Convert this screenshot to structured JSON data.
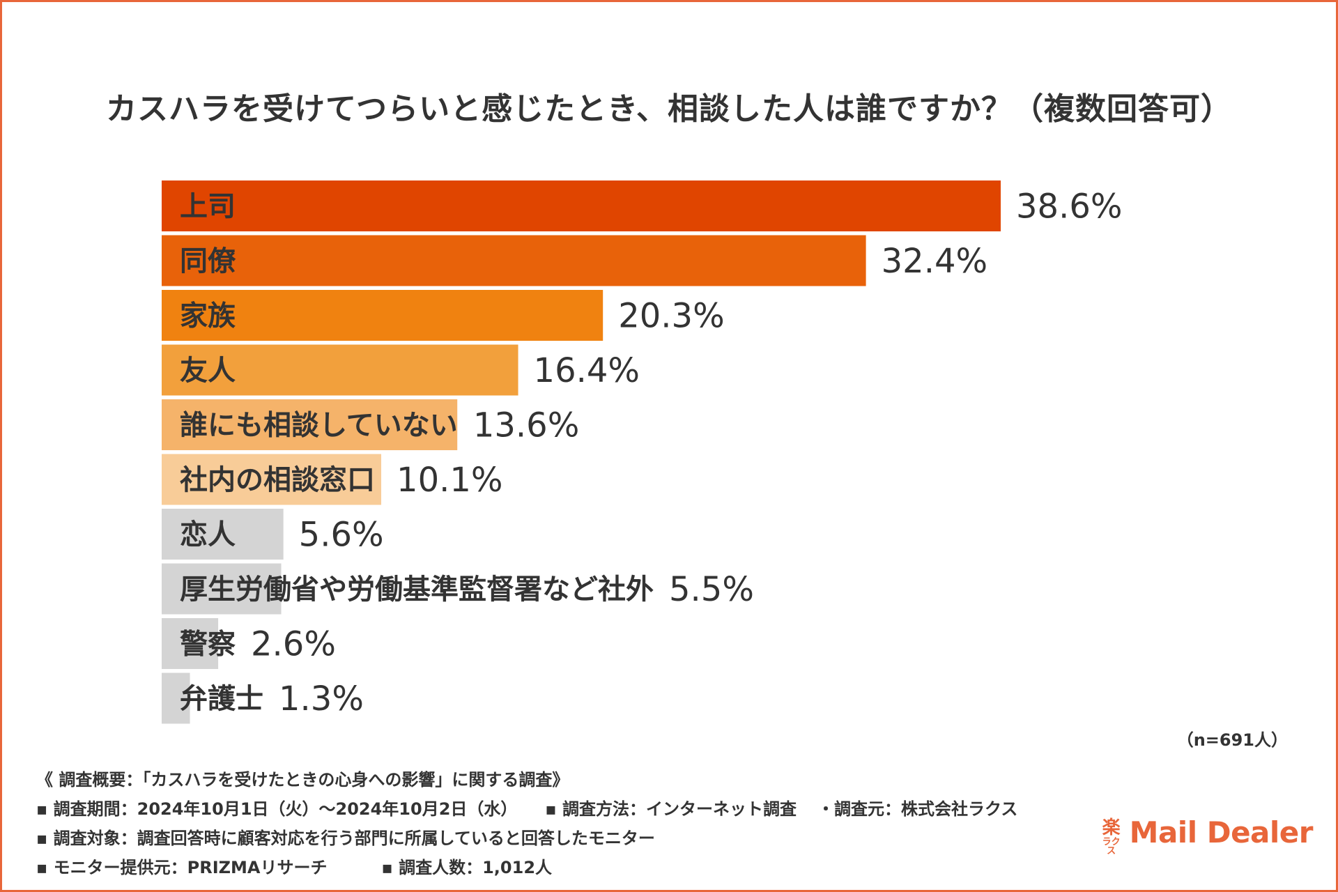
{
  "title": "カスハラを受けてつらいと感じたとき、相談した人は誰ですか？（複数回答可）",
  "sample_size": "（n=691人）",
  "notes": {
    "heading": "《 調査概要：「カスハラを受けたときの心身への影響」に関する調査》",
    "period": "▪ 調査期間：2024年10月1日（火）～2024年10月2日（水）",
    "method": "▪ 調査方法：インターネット調査",
    "source": "・調査元：株式会社ラクス",
    "target": "▪ 調査対象：調査回答時に顧客対応を行う部門に所属していると回答したモニター",
    "provider": "▪ モニター提供元：PRIZMAリサーチ",
    "respondents": "▪ 調査人数：1,012人"
  },
  "logo": {
    "mark_top": "楽",
    "mark_bottom": "ラクス",
    "text": "Mail Dealer"
  },
  "chart_data": {
    "type": "bar",
    "orientation": "horizontal",
    "categories": [
      "上司",
      "同僚",
      "家族",
      "友人",
      "誰にも相談していない",
      "社内の相談窓口",
      "恋人",
      "厚生労働省や労働基準監督署など社外",
      "警察",
      "弁護士"
    ],
    "values": [
      38.6,
      32.4,
      20.3,
      16.4,
      13.6,
      10.1,
      5.6,
      5.5,
      2.6,
      1.3
    ],
    "value_labels": [
      "38.6%",
      "32.4%",
      "20.3%",
      "16.4%",
      "13.6%",
      "10.1%",
      "5.6%",
      "5.5%",
      "2.6%",
      "1.3%"
    ],
    "colors": [
      "#e04500",
      "#e8620a",
      "#f08210",
      "#f2a03c",
      "#f5b36a",
      "#f8cc98",
      "#d4d4d4",
      "#d4d4d4",
      "#d4d4d4",
      "#d4d4d4"
    ],
    "xlim": [
      0,
      38.6
    ],
    "title": "カスハラを受けてつらいと感じたとき、相談した人は誰ですか？（複数回答可）",
    "xlabel": "",
    "ylabel": "",
    "grid": false,
    "legend": "none"
  }
}
